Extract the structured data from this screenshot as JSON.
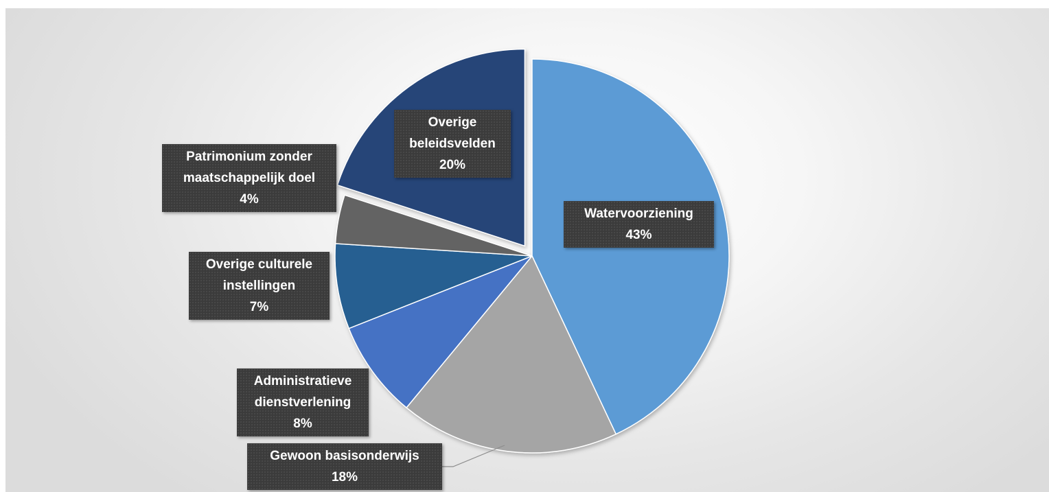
{
  "chart_data": {
    "type": "pie",
    "slices": [
      {
        "label": "Watervoorziening",
        "value": 43,
        "value_label": "43%",
        "color": "#5b9bd5"
      },
      {
        "label": "Gewoon basisonderwijs",
        "value": 18,
        "value_label": "18%",
        "color": "#a5a5a5"
      },
      {
        "label": "Administratieve dienstverlening",
        "value": 8,
        "value_label": "8%",
        "color": "#4472c4"
      },
      {
        "label": "Overige culturele instellingen",
        "value": 7,
        "value_label": "7%",
        "color": "#255e91"
      },
      {
        "label": "Patrimonium zonder maatschappelijk doel",
        "value": 4,
        "value_label": "4%",
        "color": "#636363"
      },
      {
        "label": "Overige beleidsvelden",
        "value": 20,
        "value_label": "20%",
        "color": "#264478",
        "exploded": true
      }
    ],
    "start_angle": "12 o'clock",
    "direction": "clockwise",
    "legend": "none",
    "data_labels": "category name and percentage"
  }
}
